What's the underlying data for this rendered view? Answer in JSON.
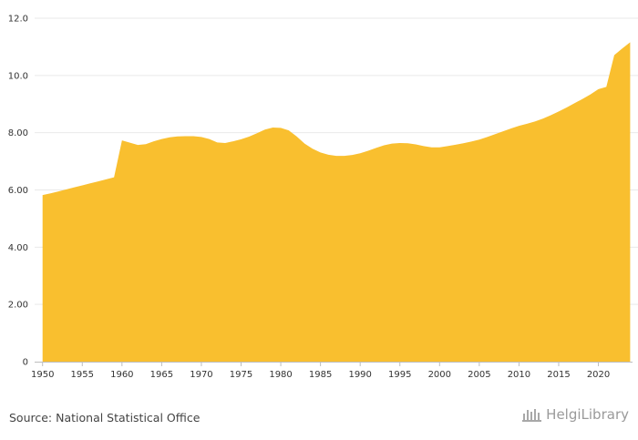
{
  "chart_data": {
    "type": "area",
    "title": "",
    "xlabel": "",
    "ylabel": "",
    "x": [
      1950,
      1951,
      1952,
      1953,
      1954,
      1955,
      1956,
      1957,
      1958,
      1959,
      1960,
      1961,
      1962,
      1963,
      1964,
      1965,
      1966,
      1967,
      1968,
      1969,
      1970,
      1971,
      1972,
      1973,
      1974,
      1975,
      1976,
      1977,
      1978,
      1979,
      1980,
      1981,
      1982,
      1983,
      1984,
      1985,
      1986,
      1987,
      1988,
      1989,
      1990,
      1991,
      1992,
      1993,
      1994,
      1995,
      1996,
      1997,
      1998,
      1999,
      2000,
      2001,
      2002,
      2003,
      2004,
      2005,
      2006,
      2007,
      2008,
      2009,
      2010,
      2011,
      2012,
      2013,
      2014,
      2015,
      2016,
      2017,
      2018,
      2019,
      2020,
      2021,
      2022,
      2023,
      2024
    ],
    "values": [
      5.82,
      5.88,
      5.95,
      6.02,
      6.09,
      6.16,
      6.23,
      6.3,
      6.37,
      6.44,
      7.73,
      7.65,
      7.57,
      7.6,
      7.7,
      7.78,
      7.84,
      7.87,
      7.88,
      7.88,
      7.85,
      7.78,
      7.66,
      7.64,
      7.7,
      7.77,
      7.86,
      7.98,
      8.11,
      8.18,
      8.17,
      8.08,
      7.87,
      7.62,
      7.44,
      7.31,
      7.23,
      7.19,
      7.19,
      7.22,
      7.28,
      7.37,
      7.47,
      7.56,
      7.62,
      7.64,
      7.63,
      7.59,
      7.53,
      7.49,
      7.49,
      7.53,
      7.58,
      7.63,
      7.69,
      7.76,
      7.85,
      7.95,
      8.05,
      8.15,
      8.24,
      8.31,
      8.39,
      8.49,
      8.61,
      8.74,
      8.88,
      9.03,
      9.18,
      9.34,
      9.52,
      9.6,
      10.71,
      10.94,
      11.16
    ],
    "xticks": [
      "1950",
      "1955",
      "1960",
      "1965",
      "1970",
      "1975",
      "1980",
      "1985",
      "1990",
      "1995",
      "2000",
      "2005",
      "2010",
      "2015",
      "2020"
    ],
    "yticks": [
      "0",
      "2.00",
      "4.00",
      "6.00",
      "8.00",
      "10.0",
      "12.0"
    ],
    "ylim": [
      0,
      12
    ],
    "xlim": [
      1949,
      2024.3
    ],
    "grid": true,
    "color": "#f9bf2f",
    "gridColor": "#e9e9e9"
  },
  "footer": {
    "source": "Source: National Statistical Office",
    "brand": "HelgiLibrary"
  }
}
